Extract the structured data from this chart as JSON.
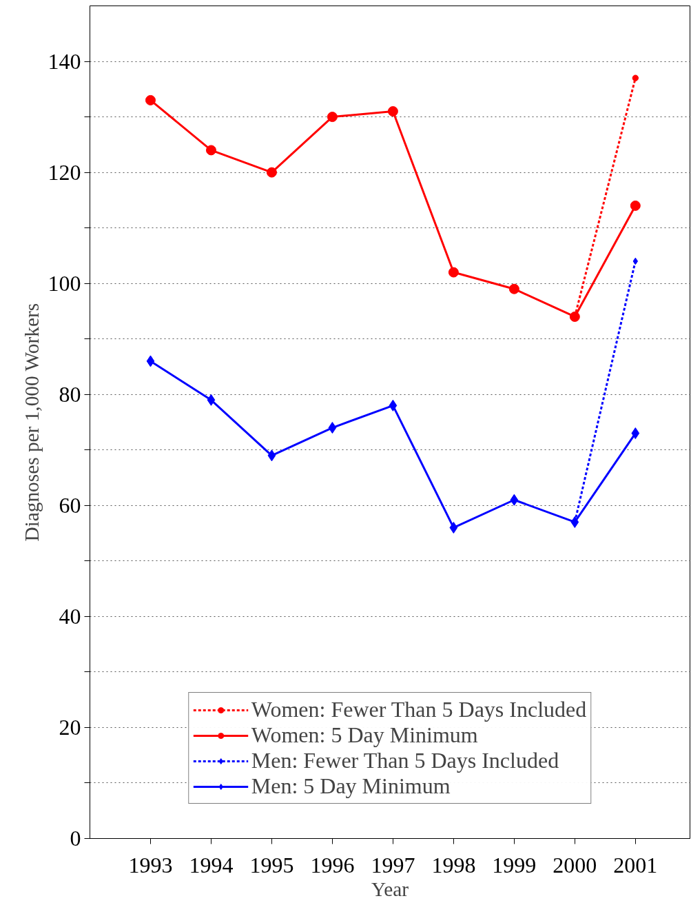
{
  "chart_data": {
    "type": "line",
    "xlabel": "Year",
    "ylabel": "Diagnoses per 1,000 Workers",
    "categories": [
      "1993",
      "1994",
      "1995",
      "1996",
      "1997",
      "1998",
      "1999",
      "2000",
      "2001"
    ],
    "series": [
      {
        "name": "Women: Fewer Than 5 Days Included",
        "color": "#ff0000",
        "marker": "circle",
        "line_style": "dotted",
        "values": [
          null,
          null,
          null,
          null,
          null,
          null,
          null,
          94,
          137
        ]
      },
      {
        "name": "Women: 5 Day Minimum",
        "color": "#ff0000",
        "marker": "circle",
        "line_style": "solid",
        "values": [
          133,
          124,
          120,
          130,
          131,
          102,
          99,
          94,
          114
        ]
      },
      {
        "name": "Men: Fewer Than 5 Days Included",
        "color": "#0000ff",
        "marker": "diamond",
        "line_style": "dotted",
        "values": [
          null,
          null,
          null,
          null,
          null,
          null,
          null,
          57,
          104
        ]
      },
      {
        "name": "Men: 5 Day Minimum",
        "color": "#0000ff",
        "marker": "diamond",
        "line_style": "solid",
        "values": [
          86,
          79,
          69,
          74,
          78,
          56,
          61,
          57,
          73
        ]
      }
    ],
    "ylim": [
      0,
      150
    ],
    "yticks": [
      0,
      {
        "value": 10,
        "label": null
      },
      20,
      {
        "value": 30,
        "label": null
      },
      40,
      {
        "value": 50,
        "label": null
      },
      60,
      {
        "value": 70,
        "label": null
      },
      80,
      {
        "value": 90,
        "label": null
      },
      100,
      {
        "value": 110,
        "label": null
      },
      120,
      {
        "value": 130,
        "label": null
      },
      140
    ],
    "grid": "y",
    "legend": "bottom"
  }
}
